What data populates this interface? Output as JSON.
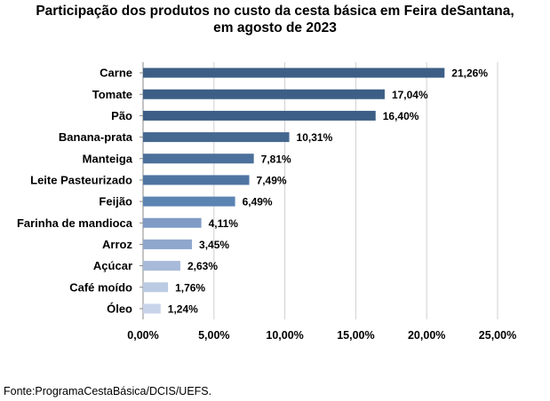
{
  "title_line1": "Participação dos produtos no custo da cesta básica em Feira deSantana,",
  "title_line2": "em agosto de 2023",
  "source": "Fonte:ProgramaCestaBásica/DCIS/UEFS.",
  "colors": {
    "bar_dark": "#3d5f86",
    "bar_mid": "#5b84b3",
    "bar_light": "#9fb4d6",
    "bar_lightest": "#c3d0e8",
    "grid": "#cfcfcf"
  },
  "chart_data": {
    "type": "bar",
    "orientation": "horizontal",
    "title": "Participação dos produtos no custo da cesta básica em Feira deSantana, em agosto de 2023",
    "categories": [
      "Carne",
      "Tomate",
      "Pão",
      "Banana-prata",
      "Manteiga",
      "Leite Pasteurizado",
      "Feijão",
      "Farinha de mandioca",
      "Arroz",
      "Açúcar",
      "Café moído",
      "Óleo"
    ],
    "values": [
      21.26,
      17.04,
      16.4,
      10.31,
      7.81,
      7.49,
      6.49,
      4.11,
      3.45,
      2.63,
      1.76,
      1.24
    ],
    "value_labels": [
      "21,26%",
      "17,04%",
      "16,40%",
      "10,31%",
      "7,81%",
      "7,49%",
      "6,49%",
      "4,11%",
      "3,45%",
      "2,63%",
      "1,76%",
      "1,24%"
    ],
    "xlim": [
      0,
      25
    ],
    "xticks": [
      0,
      5,
      10,
      15,
      20,
      25
    ],
    "xtick_labels": [
      "0,00%",
      "5,00%",
      "10,00%",
      "15,00%",
      "20,00%",
      "25,00%"
    ],
    "grid": true,
    "bar_colors": [
      "#3d5f86",
      "#3d5f86",
      "#3d5f86",
      "#446890",
      "#4a709b",
      "#4f76a3",
      "#5b84b3",
      "#7f9ac5",
      "#8fa7cd",
      "#a8bad9",
      "#bccbe4",
      "#c8d4ea"
    ]
  }
}
